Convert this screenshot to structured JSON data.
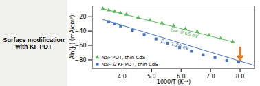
{
  "chart_data": {
    "type": "scatter",
    "title": "Surface modification\nwith KF PDT",
    "xlabel": "1000/T (K⁻¹)",
    "ylabel": "Aln(J₀) (mA/cm²)",
    "xlim": [
      3,
      8.5
    ],
    "ylim": [
      -92,
      -5
    ],
    "xticks": [
      4,
      5,
      6,
      7,
      8
    ],
    "yticks": [
      -80,
      -60,
      -40,
      -20
    ],
    "legend": "lower left",
    "series": [
      {
        "name": "NaF PDT, thin CdS",
        "color": "#5cb85c",
        "marker": "triangle",
        "x": [
          3.35,
          3.55,
          3.75,
          3.95,
          4.15,
          4.55,
          4.95,
          5.35,
          5.75,
          6.15,
          6.55,
          6.95,
          7.35,
          7.75
        ],
        "values": [
          -9,
          -11,
          -13,
          -15,
          -17,
          -21,
          -25,
          -29,
          -33,
          -37,
          -41,
          -46,
          -50,
          -55
        ],
        "fit_x": [
          3.35,
          7.75
        ],
        "fit_values": [
          -9,
          -55
        ]
      },
      {
        "name": "NaF & KF PDT, thin CdS",
        "color": "#4472c4",
        "marker": "square",
        "x": [
          3.55,
          3.75,
          3.95,
          4.35,
          4.75,
          5.15,
          5.55,
          5.95,
          6.35,
          6.75,
          7.15,
          7.55,
          7.95
        ],
        "values": [
          -27,
          -30,
          -33,
          -39,
          -45,
          -51,
          -57,
          -63,
          -68,
          -73,
          -77,
          -81,
          -83
        ],
        "fit_x": [
          3.35,
          8.5
        ],
        "fit_values": [
          -24,
          -88
        ]
      }
    ],
    "annotations": [
      {
        "text": "Eₐ= 0.65 eV",
        "x": 5.65,
        "y": -35,
        "color": "#5cb85c"
      },
      {
        "text": "Eₐ= 1.20 eV",
        "x": 5.3,
        "y": -56,
        "color": "#4472c4"
      },
      {
        "type": "arrow",
        "x": 8.0,
        "y": -63,
        "x2": 8.0,
        "y2": -80,
        "color": "#E87722"
      }
    ]
  }
}
